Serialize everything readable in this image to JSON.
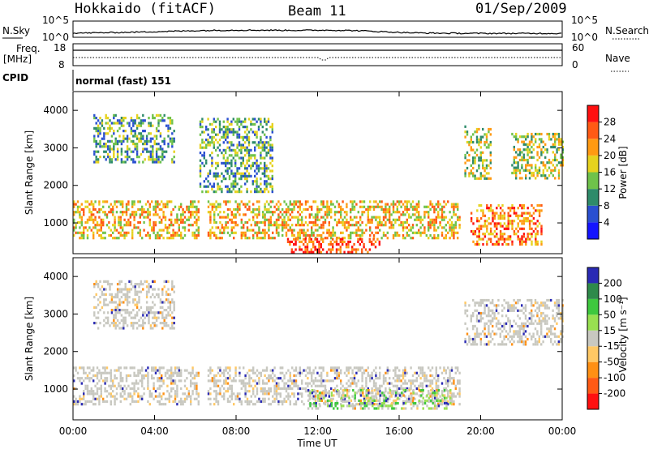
{
  "header": {
    "station": "Hokkaido (fitACF)",
    "beam": "Beam 11",
    "date": "01/Sep/2009"
  },
  "noise_panel": {
    "left_label": "N.Sky",
    "right_label": "N.Search",
    "tick_top": "10^5",
    "tick_bottom": "10^0",
    "right_tick_top": "10^5",
    "right_tick_bottom": "10^0"
  },
  "freq_panel": {
    "left_label_line1": "Freq.",
    "left_label_line2": "[MHz]",
    "left_tick_top": "18",
    "left_tick_bottom": "8",
    "right_label": "Nave",
    "right_tick_top": "60",
    "right_tick_bottom": "0"
  },
  "cpid_panel": {
    "label": "CPID",
    "text": "normal (fast) 151"
  },
  "power_colorbar": {
    "label": "Power [dB]",
    "ticks": [
      "4",
      "8",
      "12",
      "16",
      "20",
      "24",
      "28"
    ],
    "colors": [
      "#1414ff",
      "#2a4fd0",
      "#2e8b6a",
      "#6fc24a",
      "#e6d21e",
      "#ff9a12",
      "#ff5a14",
      "#ff1010"
    ]
  },
  "velocity_colorbar": {
    "label": "Velocity [m s⁻¹]",
    "ticks": [
      "200",
      "100",
      "50",
      "15",
      "-15",
      "-50",
      "-100",
      "-200"
    ],
    "colors": [
      "#2a2ab4",
      "#2e8a4a",
      "#3ec83e",
      "#98e050",
      "#c8c8c0",
      "#ffc864",
      "#ff9014",
      "#ff5a14",
      "#ff1010"
    ]
  },
  "chart_data": [
    {
      "type": "heatmap",
      "title": "Power",
      "ylabel": "Slant Range [km]",
      "xlabel": "",
      "y_ticks": [
        "1000",
        "2000",
        "3000",
        "4000"
      ],
      "ylim": [
        180,
        4500
      ],
      "xlim": [
        0,
        24
      ],
      "grid": false,
      "colorbar": "Power [dB]",
      "regions": [
        {
          "x": [
            0.0,
            6.2
          ],
          "y": [
            600,
            1600
          ],
          "level": 20
        },
        {
          "x": [
            6.6,
            19.0
          ],
          "y": [
            600,
            1600
          ],
          "level": 20
        },
        {
          "x": [
            19.5,
            23.0
          ],
          "y": [
            400,
            1500
          ],
          "level": 24
        },
        {
          "x": [
            10.5,
            15.0
          ],
          "y": [
            200,
            600
          ],
          "level": 28
        },
        {
          "x": [
            1.0,
            5.0
          ],
          "y": [
            2600,
            3900
          ],
          "level": 12
        },
        {
          "x": [
            6.2,
            9.8
          ],
          "y": [
            1800,
            3800
          ],
          "level": 12
        },
        {
          "x": [
            19.2,
            20.5
          ],
          "y": [
            2200,
            3600
          ],
          "level": 16
        },
        {
          "x": [
            21.5,
            24.0
          ],
          "y": [
            2200,
            3400
          ],
          "level": 16
        }
      ]
    },
    {
      "type": "heatmap",
      "title": "Velocity",
      "ylabel": "Slant Range [km]",
      "xlabel": "Time UT",
      "x_ticks": [
        "00:00",
        "04:00",
        "08:00",
        "12:00",
        "16:00",
        "20:00",
        "00:00"
      ],
      "y_ticks": [
        "1000",
        "2000",
        "3000",
        "4000"
      ],
      "ylim": [
        180,
        4500
      ],
      "xlim": [
        0,
        24
      ],
      "grid": false,
      "colorbar": "Velocity [m s⁻¹]",
      "regions": [
        {
          "x": [
            0.0,
            6.2
          ],
          "y": [
            600,
            1600
          ],
          "level": 0
        },
        {
          "x": [
            6.6,
            19.0
          ],
          "y": [
            600,
            1600
          ],
          "level": 0
        },
        {
          "x": [
            11.5,
            18.5
          ],
          "y": [
            500,
            1000
          ],
          "level": 30
        },
        {
          "x": [
            1.0,
            5.0
          ],
          "y": [
            2600,
            3900
          ],
          "level": 0
        },
        {
          "x": [
            19.2,
            24.0
          ],
          "y": [
            2200,
            3400
          ],
          "level": 0
        }
      ]
    }
  ]
}
